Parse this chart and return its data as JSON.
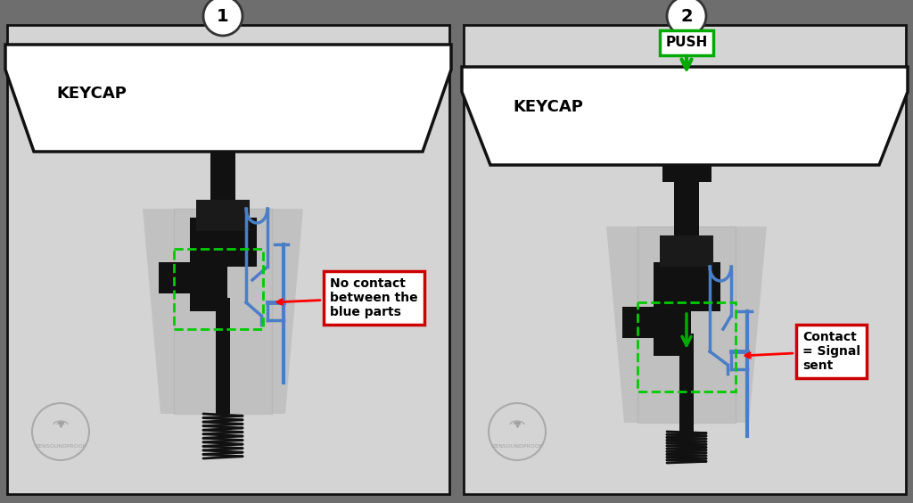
{
  "bg_color": "#6e6e6e",
  "panel_color": "#d4d4d4",
  "panel_border": "#111111",
  "keycap_color": "#ffffff",
  "keycap_border": "#111111",
  "switch_dark": "#111111",
  "switch_mid": "#222222",
  "switch_light": "#333333",
  "cylinder_color": "#b8b8b8",
  "shadow_color": "#999999",
  "blue_part_color": "#4a7ec7",
  "blue_dark": "#2255a0",
  "green_dashed_color": "#00cc00",
  "green_arrow_color": "#00aa00",
  "annotation_border": "#cc0000",
  "annotation_bg": "#ffffff",
  "annotation_text": "#000000",
  "circle_color": "#ffffff",
  "circle_border": "#333333",
  "watermark_color": "#888888",
  "panel1_label": "1",
  "panel2_label": "2",
  "keycap_label": "KEYCAP",
  "push_label": "PUSH",
  "annotation1": "No contact\nbetween the\nblue parts",
  "annotation2": "Contact\n= Signal\nsent",
  "watermark": "ZENSOUNDPROOF",
  "figsize": [
    10.24,
    5.64
  ],
  "dpi": 100
}
